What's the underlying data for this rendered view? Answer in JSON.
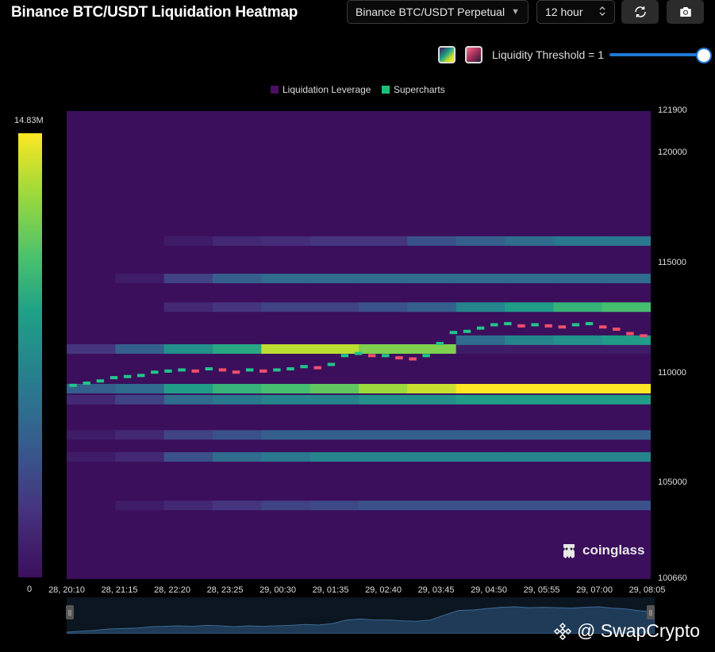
{
  "header": {
    "title": "Binance BTC/USDT Liquidation Heatmap",
    "pair_select": "Binance BTC/USDT Perpetual",
    "interval_select": "12 hour",
    "refresh_icon": "refresh-icon",
    "camera_icon": "camera-icon"
  },
  "controls": {
    "threshold_label": "Liquidity Threshold = 1",
    "threshold_value": 1,
    "palette_viridis_icon": "palette-viridis-icon",
    "palette_rose_icon": "palette-rose-icon",
    "slider_color": "#1e78d6"
  },
  "legend": {
    "item1": "Liquidation Leverage",
    "item1_color": "#4a0f5e",
    "item2": "Supercharts",
    "item2_color": "#1dbf7a"
  },
  "colorbar": {
    "max_label": "14.83M",
    "min_label": "0"
  },
  "branding": {
    "logo": "coinglass",
    "watermark": "@ SwapCrypto"
  },
  "chart_data": {
    "type": "heatmap",
    "title": "Binance BTC/USDT Liquidation Heatmap",
    "x_tick_labels": [
      "28, 20:10",
      "28, 21:15",
      "28, 22:20",
      "28, 23:25",
      "29, 00:30",
      "29, 01:35",
      "29, 02:40",
      "29, 03:45",
      "29, 04:50",
      "29, 05:55",
      "29, 07:00",
      "29, 08:05"
    ],
    "y_tick_labels": [
      "121900",
      "120000",
      "115000",
      "110000",
      "105000",
      "100660"
    ],
    "y_ticks": [
      121900,
      120000,
      115000,
      110000,
      105000,
      100660
    ],
    "ylim": [
      100660,
      121900
    ],
    "colorscale": [
      "#3b0f5c",
      "#46337e",
      "#365c8d",
      "#277f8e",
      "#1fa187",
      "#4ac16d",
      "#a0da39",
      "#fde725"
    ],
    "value_range": [
      0,
      14830000
    ],
    "liquidity_bands": [
      {
        "price": 109300,
        "intensity": [
          0.3,
          0.35,
          0.55,
          0.65,
          0.7,
          0.75,
          0.85,
          0.92,
          1.0,
          1.0,
          1.0,
          1.0
        ]
      },
      {
        "price": 111100,
        "intensity": [
          0.15,
          0.3,
          0.5,
          0.6,
          0.9,
          0.9,
          0.8,
          0.8,
          0.05,
          0.05,
          0.05,
          0.05
        ]
      },
      {
        "price": 113000,
        "intensity": [
          0.0,
          0.0,
          0.1,
          0.15,
          0.2,
          0.2,
          0.25,
          0.3,
          0.45,
          0.55,
          0.65,
          0.7
        ]
      },
      {
        "price": 111500,
        "intensity": [
          0.0,
          0.0,
          0.0,
          0.0,
          0.0,
          0.0,
          0.0,
          0.0,
          0.35,
          0.45,
          0.5,
          0.55
        ]
      },
      {
        "price": 108800,
        "intensity": [
          0.1,
          0.2,
          0.35,
          0.4,
          0.45,
          0.45,
          0.5,
          0.5,
          0.55,
          0.55,
          0.55,
          0.55
        ]
      },
      {
        "price": 106200,
        "intensity": [
          0.05,
          0.1,
          0.25,
          0.35,
          0.4,
          0.45,
          0.45,
          0.45,
          0.45,
          0.45,
          0.45,
          0.45
        ]
      },
      {
        "price": 114300,
        "intensity": [
          0.0,
          0.05,
          0.2,
          0.3,
          0.35,
          0.35,
          0.35,
          0.35,
          0.35,
          0.35,
          0.35,
          0.35
        ]
      },
      {
        "price": 116000,
        "intensity": [
          0.0,
          0.0,
          0.05,
          0.1,
          0.12,
          0.15,
          0.15,
          0.25,
          0.3,
          0.35,
          0.4,
          0.4
        ]
      },
      {
        "price": 104000,
        "intensity": [
          0.0,
          0.05,
          0.1,
          0.15,
          0.2,
          0.22,
          0.25,
          0.25,
          0.25,
          0.25,
          0.25,
          0.25
        ]
      },
      {
        "price": 107200,
        "intensity": [
          0.05,
          0.1,
          0.2,
          0.25,
          0.3,
          0.3,
          0.3,
          0.3,
          0.3,
          0.3,
          0.3,
          0.3
        ]
      }
    ],
    "price_series": [
      109450,
      109550,
      109650,
      109800,
      109850,
      109900,
      110050,
      110100,
      110150,
      110100,
      110200,
      110150,
      110050,
      110150,
      110100,
      110150,
      110200,
      110300,
      110250,
      110400,
      110800,
      110900,
      110800,
      110800,
      110700,
      110650,
      110800,
      111350,
      111850,
      111900,
      112050,
      112200,
      112250,
      112150,
      112200,
      112150,
      112100,
      112200,
      112250,
      112100,
      112000,
      111800,
      111700
    ]
  }
}
